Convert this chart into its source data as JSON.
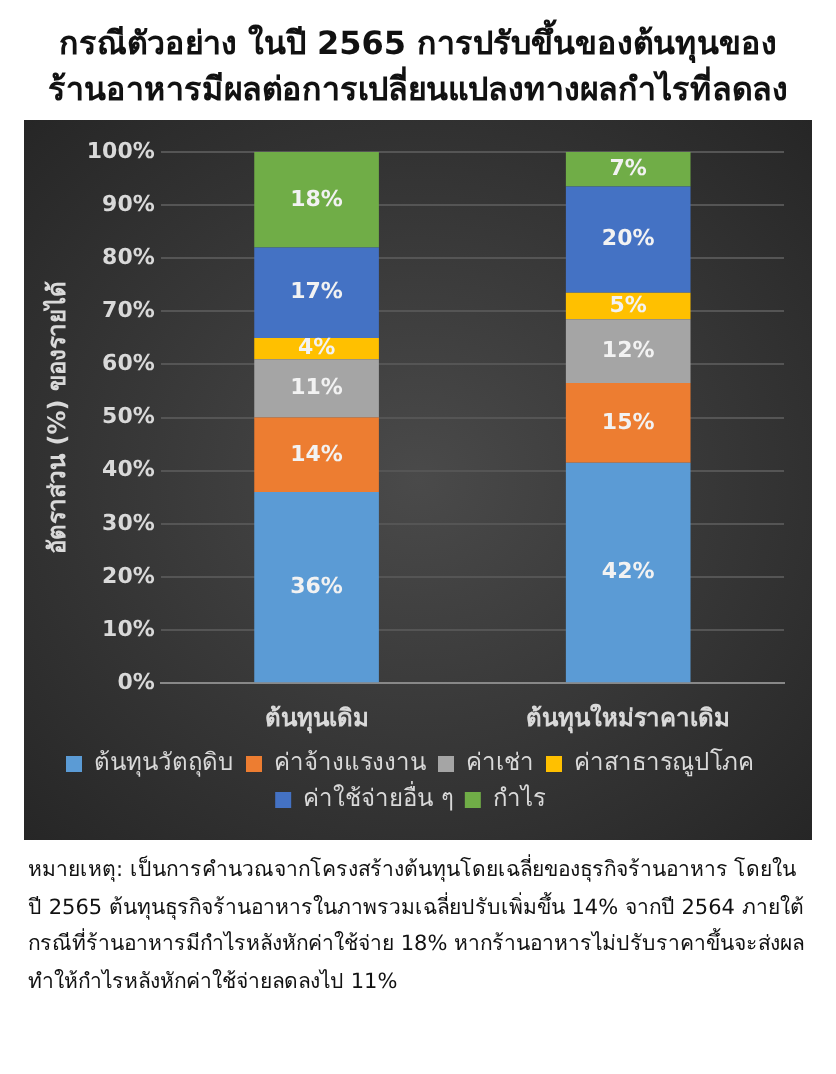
{
  "chart_data": {
    "type": "bar",
    "title": "กรณีตัวอย่าง ในปี 2565 การปรับขึ้นของต้นทุนของร้านอาหารมีผลต่อการเปลี่ยนแปลงทางผลกำไรที่ลดลง",
    "ylabel": "อัตราส่วน (%) ของรายได้",
    "categories": [
      "ต้นทุนเดิม",
      "ต้นทุนใหม่ราคาเดิม"
    ],
    "stacked": true,
    "grid": "y",
    "legend": "bottom",
    "ylim": [
      0,
      100
    ],
    "yticks": [
      {
        "value": 0,
        "label": "0%"
      },
      {
        "value": 10,
        "label": "10%"
      },
      {
        "value": 20,
        "label": "20%"
      },
      {
        "value": 30,
        "label": "30%"
      },
      {
        "value": 40,
        "label": "40%"
      },
      {
        "value": 50,
        "label": "50%"
      },
      {
        "value": 60,
        "label": "60%"
      },
      {
        "value": 70,
        "label": "70%"
      },
      {
        "value": 80,
        "label": "80%"
      },
      {
        "value": 90,
        "label": "90%"
      },
      {
        "value": 100,
        "label": "100%"
      }
    ],
    "series": [
      {
        "name": "ต้นทุนวัตถุดิบ",
        "color": "#5b9bd5",
        "values": [
          36,
          41.5
        ],
        "value_labels": [
          "36%",
          "42%"
        ]
      },
      {
        "name": "ค่าจ้างแรงงาน",
        "color": "#ed7d31",
        "values": [
          14,
          15
        ],
        "value_labels": [
          "14%",
          "15%"
        ]
      },
      {
        "name": "ค่าเช่า",
        "color": "#a5a5a5",
        "values": [
          11,
          12
        ],
        "value_labels": [
          "11%",
          "12%"
        ]
      },
      {
        "name": "ค่าสาธารณูปโภค",
        "color": "#ffc000",
        "values": [
          4,
          5
        ],
        "value_labels": [
          "4%",
          "5%"
        ]
      },
      {
        "name": "ค่าใช้จ่ายอื่น ๆ",
        "color": "#4472c4",
        "values": [
          17,
          20
        ],
        "value_labels": [
          "17%",
          "20%"
        ]
      },
      {
        "name": "กำไร",
        "color": "#70ad47",
        "values": [
          18,
          6.5
        ],
        "value_labels": [
          "18%",
          "7%"
        ]
      }
    ],
    "annotations": [
      "หมายเหตุ: เป็นการคำนวณจากโครงสร้างต้นทุนโดยเฉลี่ยของธุรกิจร้านอาหาร โดยในปี 2565 ต้นทุนธุรกิจร้านอาหารในภาพรวมเฉลี่ยปรับเพิ่มขึ้น 14% จากปี 2564 ภายใต้กรณีที่ร้านอาหารมีกำไรหลังหักค่าใช้จ่าย 18% หากร้านอาหารไม่ปรับราคาขึ้นจะส่งผลทำให้กำไรหลังหักค่าใช้จ่ายลดลงไป 11%"
    ]
  }
}
